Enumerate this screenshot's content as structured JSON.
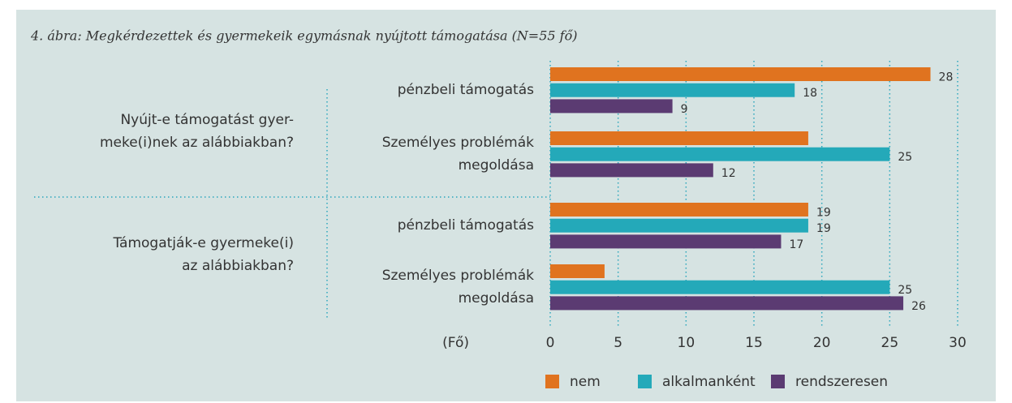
{
  "chart_data": {
    "type": "bar",
    "orientation": "horizontal",
    "title": "4. ábra: Megkérdezettek és gyermekeik egymásnak nyújtott támogatása (N=55 fő)",
    "groups": [
      [
        "Nyújt-e támogatást gyer-",
        "meke(i)nek az alábbiakban?"
      ],
      [
        "Támogatják-e gyermeke(i)",
        "az alábbiakban?"
      ]
    ],
    "categories": [
      [
        "pénzbeli támogatás"
      ],
      [
        "Személyes problémák",
        "megoldása"
      ],
      [
        "pénzbeli támogatás"
      ],
      [
        "Személyes problémák",
        "megoldása"
      ]
    ],
    "series": [
      {
        "name": "nem",
        "color": "#e0731f",
        "values": [
          28,
          19,
          19,
          4
        ],
        "value_labels": [
          "28",
          null,
          "19",
          null
        ]
      },
      {
        "name": "alkalmanként",
        "color": "#24a9b9",
        "values": [
          18,
          25,
          19,
          25
        ],
        "value_labels": [
          "18",
          "25",
          "19",
          "25"
        ]
      },
      {
        "name": "rendszeresen",
        "color": "#5b3b72",
        "values": [
          9,
          12,
          17,
          26
        ],
        "value_labels": [
          "9",
          "12",
          "17",
          "26"
        ]
      }
    ],
    "x_label": "(Fő)",
    "xlim": [
      0,
      30
    ],
    "xticks": [
      0,
      5,
      10,
      15,
      20,
      25,
      30
    ],
    "grid": true,
    "legend": "bottom"
  }
}
